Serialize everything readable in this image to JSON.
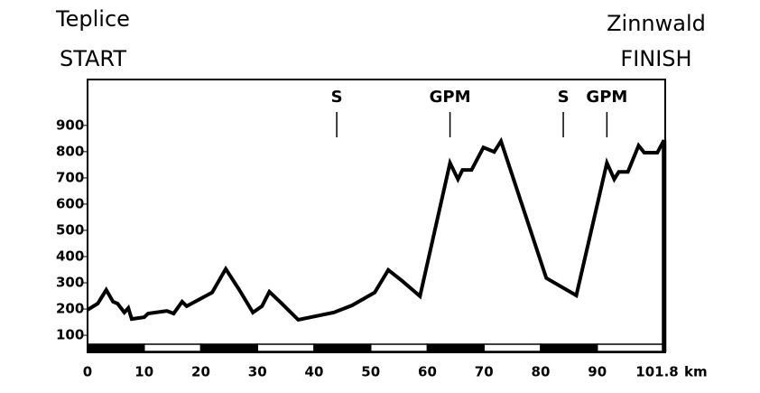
{
  "chart_data": {
    "type": "line",
    "start_name": "Teplice",
    "start_label": "START",
    "finish_name": "Zinnwald",
    "finish_label": "FINISH",
    "x_label": "km",
    "x": [
      0,
      1.8,
      3.3,
      4.5,
      5.3,
      6.5,
      7.2,
      7.8,
      10,
      10.7,
      14,
      15.2,
      16.7,
      17.5,
      22,
      24.4,
      26.8,
      29.2,
      30.8,
      32.1,
      34.3,
      37.2,
      43.5,
      46.7,
      50.7,
      53.1,
      55.5,
      58.7,
      64,
      65.4,
      66.2,
      67.8,
      69.9,
      71.8,
      73,
      81,
      86.3,
      91.7,
      93,
      93.8,
      95.4,
      97.3,
      98.3,
      100.6,
      101.8
    ],
    "series": [
      {
        "color": "#000000",
        "values": [
          197,
          221,
          273,
          228,
          221,
          187,
          204,
          162,
          169,
          183,
          193,
          183,
          228,
          211,
          263,
          353,
          273,
          187,
          211,
          266,
          221,
          159,
          187,
          214,
          263,
          349,
          308,
          249,
          757,
          695,
          730,
          730,
          816,
          799,
          840,
          318,
          252,
          757,
          695,
          723,
          723,
          823,
          796,
          796,
          844
        ]
      }
    ],
    "annotations": [
      {
        "label": "S",
        "x": 44
      },
      {
        "label": "GPM",
        "x": 64
      },
      {
        "label": "S",
        "x": 84
      },
      {
        "label": "GPM",
        "x": 91.7
      }
    ],
    "xlim": [
      0,
      102
    ],
    "ylim": [
      35,
      1075
    ],
    "xticks": [
      0,
      10,
      20,
      30,
      40,
      50,
      60,
      70,
      80,
      90,
      101.8
    ],
    "yticks": [
      100,
      200,
      300,
      400,
      500,
      600,
      700,
      800,
      900
    ]
  }
}
